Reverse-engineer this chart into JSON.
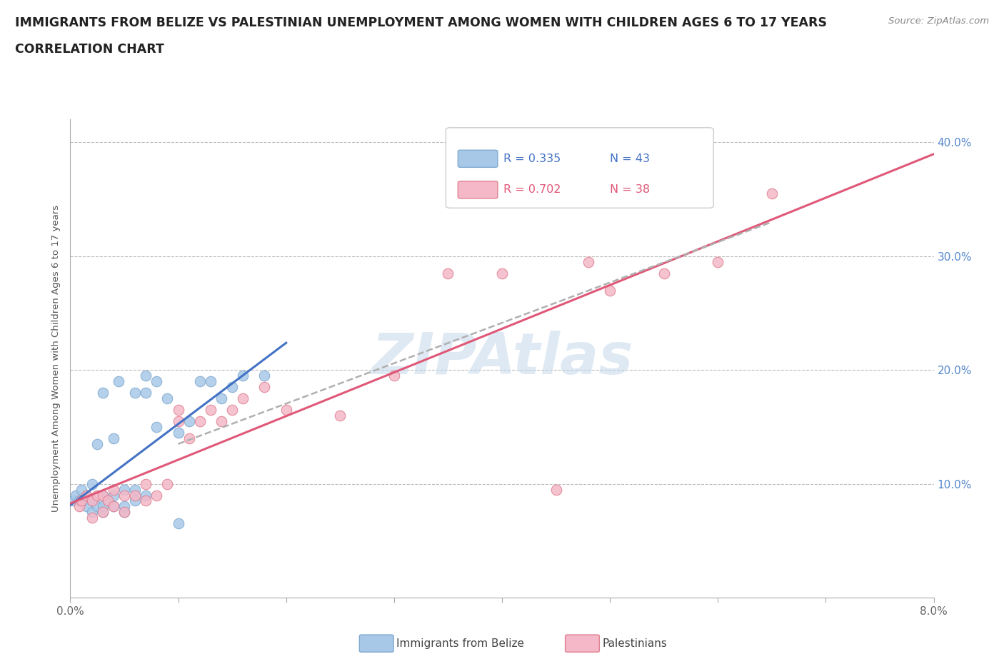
{
  "title": "IMMIGRANTS FROM BELIZE VS PALESTINIAN UNEMPLOYMENT AMONG WOMEN WITH CHILDREN AGES 6 TO 17 YEARS",
  "subtitle": "CORRELATION CHART",
  "source": "Source: ZipAtlas.com",
  "ylabel": "Unemployment Among Women with Children Ages 6 to 17 years",
  "xlim": [
    0.0,
    0.08
  ],
  "ylim": [
    0.0,
    0.42
  ],
  "xticks": [
    0.0,
    0.01,
    0.02,
    0.03,
    0.04,
    0.05,
    0.06,
    0.07,
    0.08
  ],
  "xtick_labels": [
    "0.0%",
    "",
    "",
    "",
    "",
    "",
    "",
    "",
    "8.0%"
  ],
  "ytick_positions": [
    0.0,
    0.1,
    0.2,
    0.3,
    0.4
  ],
  "ytick_labels": [
    "",
    "10.0%",
    "20.0%",
    "30.0%",
    "40.0%"
  ],
  "watermark": "ZIPAtlas",
  "legend1_r": "0.335",
  "legend1_n": "43",
  "legend2_r": "0.702",
  "legend2_n": "38",
  "series1_color": "#a8c8e8",
  "series1_edge": "#80aad0",
  "series2_color": "#f4b8c8",
  "series2_edge": "#e08090",
  "line1_color": "#4472c4",
  "line2_color": "#e05878",
  "dash_color": "#b0b0b0",
  "blue_scatter_x": [
    0.0003,
    0.0005,
    0.0008,
    0.001,
    0.001,
    0.0012,
    0.0015,
    0.0015,
    0.002,
    0.002,
    0.002,
    0.0025,
    0.0025,
    0.003,
    0.003,
    0.003,
    0.003,
    0.0035,
    0.004,
    0.004,
    0.004,
    0.0045,
    0.005,
    0.005,
    0.005,
    0.006,
    0.006,
    0.006,
    0.007,
    0.007,
    0.007,
    0.008,
    0.008,
    0.009,
    0.01,
    0.01,
    0.011,
    0.012,
    0.013,
    0.014,
    0.015,
    0.016,
    0.018
  ],
  "blue_scatter_y": [
    0.085,
    0.09,
    0.085,
    0.085,
    0.095,
    0.085,
    0.08,
    0.09,
    0.075,
    0.085,
    0.1,
    0.08,
    0.135,
    0.075,
    0.08,
    0.09,
    0.18,
    0.085,
    0.08,
    0.09,
    0.14,
    0.19,
    0.075,
    0.08,
    0.095,
    0.085,
    0.095,
    0.18,
    0.09,
    0.18,
    0.195,
    0.15,
    0.19,
    0.175,
    0.065,
    0.145,
    0.155,
    0.19,
    0.19,
    0.175,
    0.185,
    0.195,
    0.195
  ],
  "pink_scatter_x": [
    0.0008,
    0.001,
    0.0015,
    0.002,
    0.002,
    0.0025,
    0.003,
    0.003,
    0.0035,
    0.004,
    0.004,
    0.005,
    0.005,
    0.006,
    0.007,
    0.007,
    0.008,
    0.009,
    0.01,
    0.01,
    0.011,
    0.012,
    0.013,
    0.014,
    0.015,
    0.016,
    0.018,
    0.02,
    0.025,
    0.03,
    0.035,
    0.04,
    0.045,
    0.048,
    0.05,
    0.055,
    0.06,
    0.065
  ],
  "pink_scatter_y": [
    0.08,
    0.085,
    0.09,
    0.07,
    0.085,
    0.09,
    0.075,
    0.09,
    0.085,
    0.08,
    0.095,
    0.075,
    0.09,
    0.09,
    0.085,
    0.1,
    0.09,
    0.1,
    0.155,
    0.165,
    0.14,
    0.155,
    0.165,
    0.155,
    0.165,
    0.175,
    0.185,
    0.165,
    0.16,
    0.195,
    0.285,
    0.285,
    0.095,
    0.295,
    0.27,
    0.285,
    0.295,
    0.355
  ],
  "dash_line_x": [
    0.01,
    0.065
  ],
  "dash_line_y": [
    0.135,
    0.33
  ]
}
